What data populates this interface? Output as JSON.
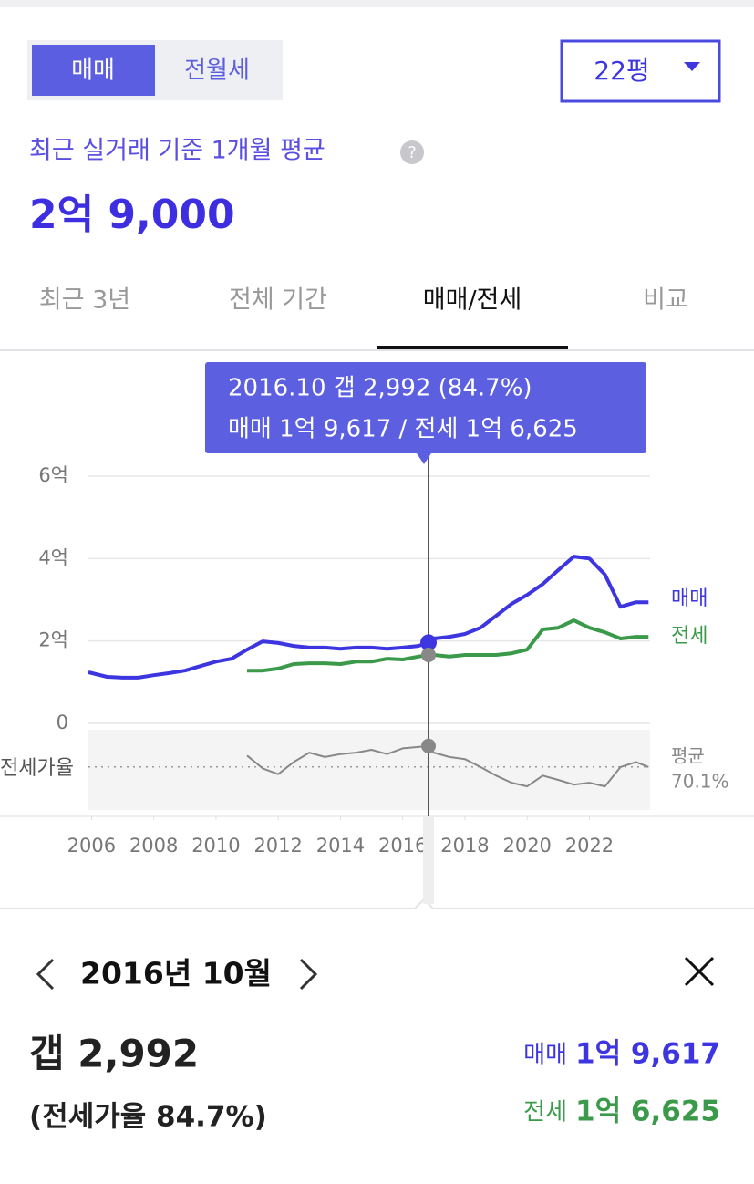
{
  "toggle": [
    "매매",
    "전월세"
  ],
  "size_select": "22평",
  "subtitle": "최근 실거래 기준 1개월 평균",
  "price": "2억 9,000",
  "tabs": [
    "최근 3년",
    "전체 기간",
    "매매/전세",
    "비교"
  ],
  "tooltip": {
    "line1": "2016.10  갭 2,992 (84.7%)",
    "line2": "매매 1억 9,617 / 전세 1억 6,625"
  },
  "detail": {
    "date": "2016년 10월",
    "gap": "갭 2,992",
    "ratio": "(전세가율 84.7%)",
    "sale_label": "매매",
    "sale_value": "1억 9,617",
    "jeonse_label": "전세",
    "jeonse_value": "1억 6,625"
  },
  "chart_data": {
    "type": "line",
    "x": [
      2005.9,
      2006.5,
      2007,
      2007.5,
      2008,
      2008.5,
      2009,
      2009.5,
      2010,
      2010.5,
      2011,
      2011.5,
      2012,
      2012.5,
      2013,
      2013.5,
      2014,
      2014.5,
      2015,
      2015.5,
      2016,
      2016.5,
      2016.83,
      2017,
      2017.5,
      2018,
      2018.5,
      2019,
      2019.5,
      2020,
      2020.5,
      2021,
      2021.5,
      2022,
      2022.5,
      2023,
      2023.5,
      2023.9
    ],
    "xlim": [
      2005.9,
      2023.95
    ],
    "xticks": [
      2006,
      2008,
      2010,
      2012,
      2014,
      2016,
      2018,
      2020,
      2022
    ],
    "ylim": [
      0,
      60000
    ],
    "yticks": [
      0,
      {
        "value": 20000,
        "label": "2억"
      },
      {
        "value": 40000,
        "label": "4억"
      },
      {
        "value": 60000,
        "label": "6억"
      }
    ],
    "y2lim": [
      40,
      96
    ],
    "y2_label": "전세가율",
    "y2_average": 70.1,
    "y2_average_name": "평균",
    "y2_average_label": "70.1%",
    "selected": 2016.83,
    "grid": true,
    "series": [
      {
        "name": "매매",
        "color": "#3d35e0",
        "values": [
          12400,
          11300,
          11100,
          11100,
          11700,
          12200,
          12800,
          13900,
          15000,
          15700,
          17900,
          19900,
          19500,
          18800,
          18400,
          18400,
          18100,
          18400,
          18400,
          18100,
          18400,
          18800,
          19617,
          20600,
          21000,
          21700,
          23200,
          26100,
          29000,
          31200,
          33800,
          37200,
          40500,
          40000,
          36100,
          28300,
          29400,
          29400
        ]
      },
      {
        "name": "전세",
        "color": "#3a9a4a",
        "values": [
          null,
          null,
          null,
          null,
          null,
          null,
          null,
          null,
          null,
          null,
          12800,
          12800,
          13300,
          14400,
          14600,
          14600,
          14400,
          15000,
          15000,
          15700,
          15500,
          16200,
          16625,
          16600,
          16200,
          16600,
          16600,
          16600,
          17000,
          17900,
          22800,
          23200,
          25000,
          23200,
          22100,
          20600,
          21000,
          21000
        ]
      },
      {
        "name": "전세가율",
        "color": "#888888",
        "axis": "y2",
        "values": [
          null,
          null,
          null,
          null,
          null,
          null,
          null,
          null,
          null,
          null,
          78,
          69,
          65,
          73.5,
          80,
          77,
          79,
          80,
          82,
          79,
          83,
          84,
          84.7,
          80,
          77,
          75.5,
          70,
          64,
          59,
          56.5,
          64,
          61,
          57.7,
          59,
          56.5,
          70,
          73.5,
          70
        ]
      }
    ]
  }
}
